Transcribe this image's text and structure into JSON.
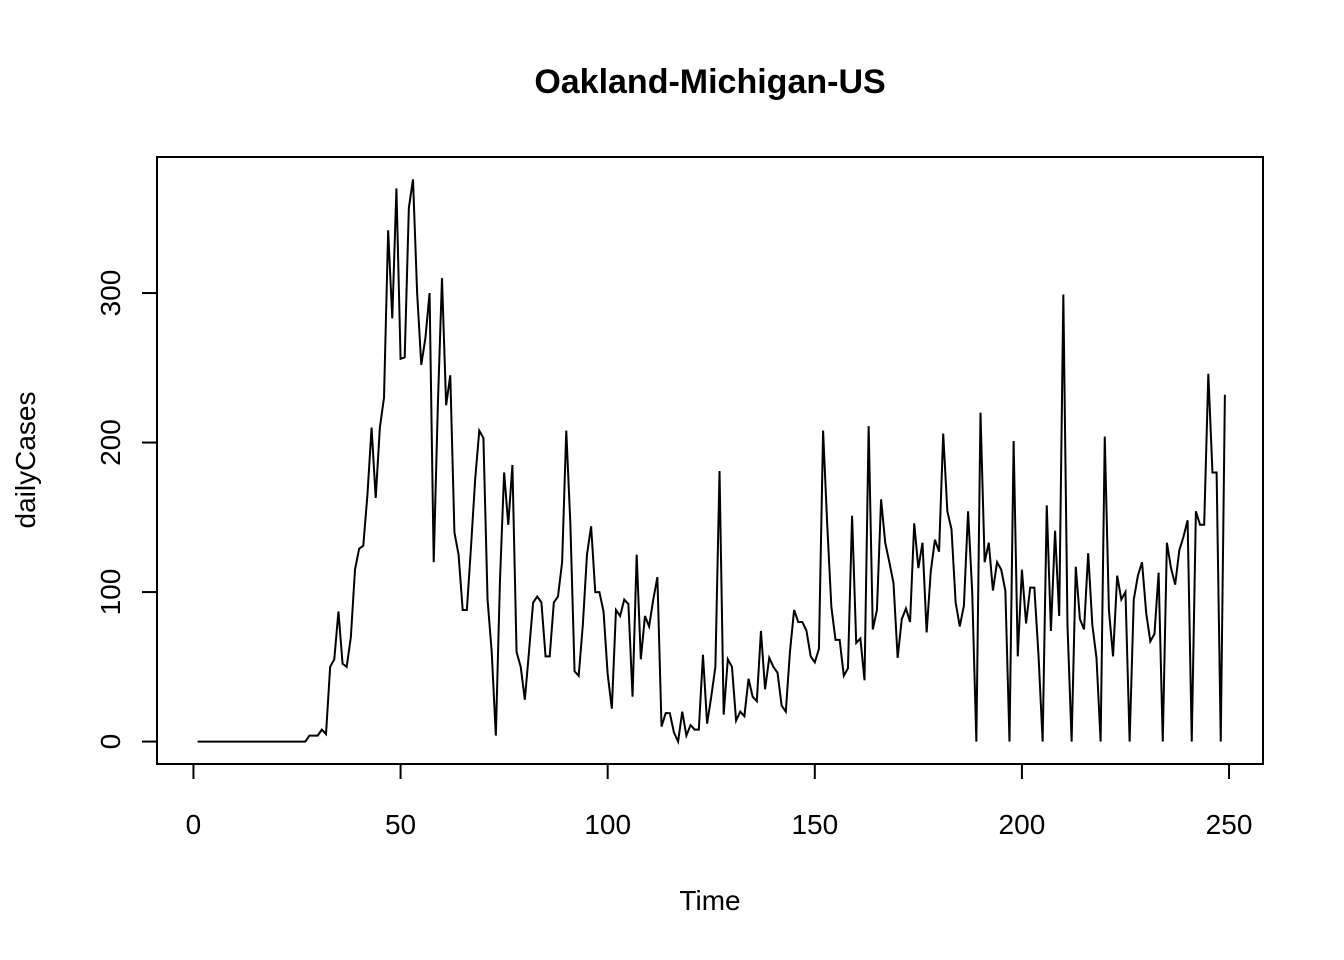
{
  "chart_data": {
    "type": "line",
    "title": "Oakland-Michigan-US",
    "xlabel": "Time",
    "ylabel": "dailyCases",
    "xlim": [
      -8.8,
      258.2
    ],
    "ylim": [
      -15,
      391
    ],
    "x_ticks": [
      0,
      50,
      100,
      150,
      200,
      250
    ],
    "y_ticks": [
      0,
      100,
      200,
      300
    ],
    "x_tick_labels": [
      "0",
      "50",
      "100",
      "150",
      "200",
      "250"
    ],
    "y_tick_labels": [
      "0",
      "100",
      "200",
      "300"
    ],
    "grid": false,
    "legend": "none",
    "line_color": "#000000",
    "series": [
      {
        "x_start": 1,
        "values": [
          0,
          0,
          0,
          0,
          0,
          0,
          0,
          0,
          0,
          0,
          0,
          0,
          0,
          0,
          0,
          0,
          0,
          0,
          0,
          0,
          0,
          0,
          0,
          0,
          0,
          0,
          0,
          4,
          4,
          4,
          8,
          5,
          50,
          55,
          87,
          52,
          50,
          70,
          115,
          129,
          131,
          165,
          210,
          163,
          210,
          230,
          342,
          283,
          370,
          256,
          257,
          357,
          376,
          300,
          252,
          270,
          300,
          120,
          225,
          310,
          225,
          245,
          140,
          125,
          88,
          88,
          130,
          175,
          208,
          203,
          95,
          60,
          4,
          108,
          180,
          145,
          185,
          60,
          50,
          28,
          60,
          93,
          97,
          93,
          57,
          57,
          93,
          97,
          120,
          208,
          145,
          47,
          44,
          78,
          125,
          144,
          100,
          100,
          87,
          45,
          22,
          88,
          84,
          95,
          92,
          30,
          125,
          55,
          84,
          77,
          95,
          110,
          10,
          19,
          19,
          6,
          0,
          20,
          4,
          11,
          8,
          8,
          58,
          12,
          30,
          50,
          181,
          18,
          55,
          50,
          14,
          20,
          17,
          42,
          30,
          27,
          74,
          35,
          56,
          50,
          46,
          24,
          20,
          60,
          88,
          80,
          80,
          74,
          57,
          53,
          62,
          208,
          145,
          90,
          68,
          68,
          44,
          49,
          151,
          66,
          69,
          41,
          211,
          75,
          88,
          162,
          133,
          120,
          106,
          56,
          82,
          89,
          80,
          146,
          116,
          133,
          73,
          114,
          135,
          127,
          206,
          154,
          142,
          93,
          77,
          91,
          154,
          100,
          0,
          220,
          120,
          133,
          101,
          120,
          115,
          101,
          0,
          201,
          57,
          115,
          79,
          103,
          103,
          58,
          0,
          158,
          74,
          141,
          84,
          299,
          78,
          0,
          117,
          82,
          75,
          126,
          78,
          56,
          0,
          204,
          88,
          57,
          111,
          95,
          100,
          0,
          95,
          111,
          120,
          86,
          67,
          72,
          113,
          0,
          133,
          116,
          105,
          128,
          137,
          148,
          0,
          154,
          145,
          145,
          246,
          180,
          180,
          0,
          232
        ]
      }
    ]
  }
}
